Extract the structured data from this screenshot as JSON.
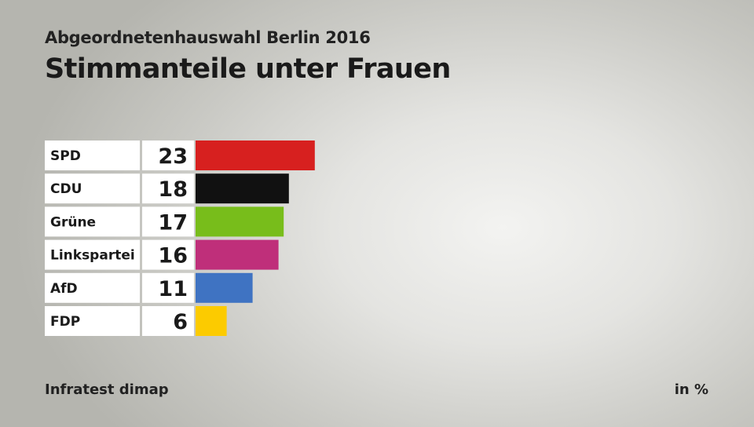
{
  "header": {
    "subtitle": "Abgeordnetenhauswahl Berlin 2016",
    "title": "Stimmanteile unter Frauen"
  },
  "footer": {
    "source": "Infratest dimap",
    "unit": "in %"
  },
  "chart_data": {
    "type": "bar",
    "orientation": "horizontal",
    "title": "Stimmanteile unter Frauen",
    "subtitle": "Abgeordnetenhauswahl Berlin 2016",
    "unit": "in %",
    "categories": [
      "SPD",
      "CDU",
      "Grüne",
      "Linkspartei",
      "AfD",
      "FDP"
    ],
    "values": [
      23,
      18,
      17,
      16,
      11,
      6
    ],
    "colors": [
      "#d7201f",
      "#111111",
      "#78bd1b",
      "#bf2f7a",
      "#3f73c2",
      "#fccb00"
    ],
    "grid": false
  }
}
